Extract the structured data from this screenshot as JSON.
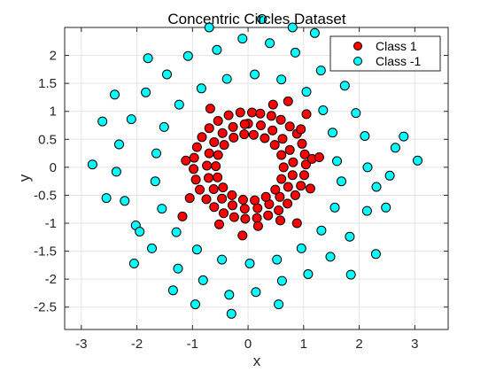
{
  "chart_data": {
    "type": "scatter",
    "title": "Concentric Circles Dataset",
    "xlabel": "x",
    "ylabel": "y",
    "xlim": [
      -3.3,
      3.6
    ],
    "ylim": [
      -2.9,
      2.5
    ],
    "xticks": [
      -3,
      -2,
      -1,
      0,
      1,
      2,
      3
    ],
    "xtick_labels": [
      "-3",
      "-2",
      "-1",
      "0",
      "1",
      "2",
      "3"
    ],
    "yticks": [
      -2.5,
      -2,
      -1.5,
      -1,
      -0.5,
      0,
      0.5,
      1,
      1.5,
      2
    ],
    "ytick_labels": [
      "-2.5",
      "-2",
      "-1.5",
      "-1",
      "-0.5",
      "0",
      "0.5",
      "1",
      "1.5",
      "2"
    ],
    "grid": true,
    "legend_position": "top-right",
    "colors": {
      "class1": "#ff0000",
      "class2": "#00ffff",
      "marker_edge": "#000000",
      "grid": "#e5e5e5",
      "axes": "#262626"
    },
    "series": [
      {
        "name": "Class 1",
        "color": "#ff0000",
        "points": [
          [
            0.07,
            0.98
          ],
          [
            0.22,
            0.96
          ],
          [
            0.42,
            0.92
          ],
          [
            0.59,
            0.85
          ],
          [
            0.75,
            0.73
          ],
          [
            0.88,
            0.6
          ],
          [
            0.97,
            0.42
          ],
          [
            1.02,
            0.23
          ],
          [
            1.04,
            0.05
          ],
          [
            1.01,
            -0.14
          ],
          [
            0.95,
            -0.33
          ],
          [
            0.85,
            -0.5
          ],
          [
            0.71,
            -0.65
          ],
          [
            0.55,
            -0.77
          ],
          [
            0.36,
            -0.86
          ],
          [
            0.16,
            -0.91
          ],
          [
            -0.05,
            -0.92
          ],
          [
            -0.25,
            -0.89
          ],
          [
            -0.44,
            -0.82
          ],
          [
            -0.61,
            -0.71
          ],
          [
            -0.75,
            -0.57
          ],
          [
            -0.87,
            -0.4
          ],
          [
            -0.94,
            -0.22
          ],
          [
            -0.98,
            -0.03
          ],
          [
            -0.97,
            0.17
          ],
          [
            -0.92,
            0.36
          ],
          [
            -0.83,
            0.54
          ],
          [
            -0.7,
            0.7
          ],
          [
            -0.54,
            0.83
          ],
          [
            -0.35,
            0.93
          ],
          [
            -0.14,
            0.98
          ],
          [
            0.0,
            0.78
          ],
          [
            0.23,
            0.75
          ],
          [
            0.44,
            0.66
          ],
          [
            0.62,
            0.51
          ],
          [
            0.75,
            0.31
          ],
          [
            0.81,
            0.09
          ],
          [
            0.8,
            -0.14
          ],
          [
            0.72,
            -0.35
          ],
          [
            0.57,
            -0.53
          ],
          [
            0.38,
            -0.66
          ],
          [
            0.17,
            -0.73
          ],
          [
            -0.06,
            -0.74
          ],
          [
            -0.28,
            -0.68
          ],
          [
            -0.47,
            -0.56
          ],
          [
            -0.62,
            -0.39
          ],
          [
            -0.71,
            -0.19
          ],
          [
            -0.74,
            0.03
          ],
          [
            -0.7,
            0.25
          ],
          [
            -0.61,
            0.45
          ],
          [
            -0.46,
            0.61
          ],
          [
            -0.27,
            0.72
          ],
          [
            -0.06,
            0.77
          ],
          [
            0.1,
            0.58
          ],
          [
            0.3,
            0.52
          ],
          [
            0.48,
            0.4
          ],
          [
            0.6,
            0.22
          ],
          [
            0.64,
            0.0
          ],
          [
            0.6,
            -0.21
          ],
          [
            0.49,
            -0.4
          ],
          [
            0.32,
            -0.53
          ],
          [
            0.12,
            -0.59
          ],
          [
            -0.09,
            -0.58
          ],
          [
            -0.29,
            -0.5
          ],
          [
            -0.45,
            -0.36
          ],
          [
            -0.55,
            -0.18
          ],
          [
            -0.58,
            0.02
          ],
          [
            -0.54,
            0.22
          ],
          [
            -0.43,
            0.4
          ],
          [
            -0.26,
            0.53
          ],
          [
            -0.07,
            0.59
          ],
          [
            0.95,
            0.68
          ],
          [
            1.12,
            -0.38
          ],
          [
            -1.05,
            -0.55
          ],
          [
            -0.68,
            1.05
          ],
          [
            0.58,
            -0.95
          ],
          [
            -0.52,
            -1.02
          ],
          [
            0.45,
            1.12
          ],
          [
            1.15,
            0.15
          ],
          [
            -1.12,
            0.12
          ],
          [
            0.18,
            -1.05
          ],
          [
            -1.18,
            -0.88
          ],
          [
            0.72,
            1.18
          ],
          [
            1.28,
            0.18
          ],
          [
            0.88,
            -1.0
          ],
          [
            -0.1,
            -1.22
          ],
          [
            1.05,
            0.95
          ]
        ]
      },
      {
        "name": "Class -1",
        "color": "#00ffff",
        "points": [
          [
            2.15,
            0.0
          ],
          [
            2.1,
            0.56
          ],
          [
            1.94,
            0.97
          ],
          [
            1.74,
            1.46
          ],
          [
            1.31,
            1.73
          ],
          [
            0.85,
            2.05
          ],
          [
            0.39,
            2.22
          ],
          [
            -0.1,
            2.3
          ],
          [
            -0.56,
            2.1
          ],
          [
            -1.08,
            1.99
          ],
          [
            -1.46,
            1.66
          ],
          [
            -1.84,
            1.34
          ],
          [
            -2.1,
            0.86
          ],
          [
            -2.32,
            0.41
          ],
          [
            -2.37,
            -0.08
          ],
          [
            -2.22,
            -0.6
          ],
          [
            -2.02,
            -1.04
          ],
          [
            -1.73,
            -1.45
          ],
          [
            -1.26,
            -1.81
          ],
          [
            -0.81,
            -2.02
          ],
          [
            -0.34,
            -2.28
          ],
          [
            0.14,
            -2.23
          ],
          [
            0.61,
            -2.03
          ],
          [
            1.08,
            -1.91
          ],
          [
            1.48,
            -1.6
          ],
          [
            1.83,
            -1.24
          ],
          [
            2.14,
            -0.78
          ],
          [
            2.31,
            -0.35
          ],
          [
            1.6,
            0.11
          ],
          [
            1.52,
            0.62
          ],
          [
            1.35,
            1.02
          ],
          [
            1.05,
            1.35
          ],
          [
            0.6,
            1.57
          ],
          [
            0.12,
            1.66
          ],
          [
            -0.38,
            1.58
          ],
          [
            -0.84,
            1.41
          ],
          [
            -1.24,
            1.12
          ],
          [
            -1.51,
            0.72
          ],
          [
            -1.65,
            0.25
          ],
          [
            -1.67,
            -0.25
          ],
          [
            -1.55,
            -0.74
          ],
          [
            -1.29,
            -1.16
          ],
          [
            -0.92,
            -1.47
          ],
          [
            -0.47,
            -1.65
          ],
          [
            0.03,
            -1.72
          ],
          [
            0.52,
            -1.65
          ],
          [
            0.96,
            -1.45
          ],
          [
            1.32,
            -1.13
          ],
          [
            1.56,
            -0.72
          ],
          [
            1.68,
            -0.25
          ],
          [
            2.65,
            0.35
          ],
          [
            2.48,
            -0.72
          ],
          [
            -2.62,
            0.82
          ],
          [
            -2.55,
            -0.55
          ],
          [
            0.25,
            2.65
          ],
          [
            -0.3,
            -2.62
          ],
          [
            1.95,
            1.85
          ],
          [
            -1.8,
            1.95
          ],
          [
            -2.05,
            -1.72
          ],
          [
            1.85,
            -1.92
          ],
          [
            3.05,
            0.12
          ],
          [
            -2.8,
            0.05
          ],
          [
            0.8,
            2.5
          ],
          [
            -0.95,
            -2.45
          ],
          [
            2.8,
            0.55
          ],
          [
            -2.4,
            1.3
          ],
          [
            1.2,
            2.4
          ],
          [
            -1.35,
            -2.2
          ],
          [
            2.55,
            -0.15
          ],
          [
            -0.7,
            2.5
          ],
          [
            0.55,
            -2.45
          ],
          [
            1.6,
            1.95
          ],
          [
            -1.95,
            -1.15
          ],
          [
            2.3,
            -1.55
          ]
        ]
      }
    ]
  }
}
